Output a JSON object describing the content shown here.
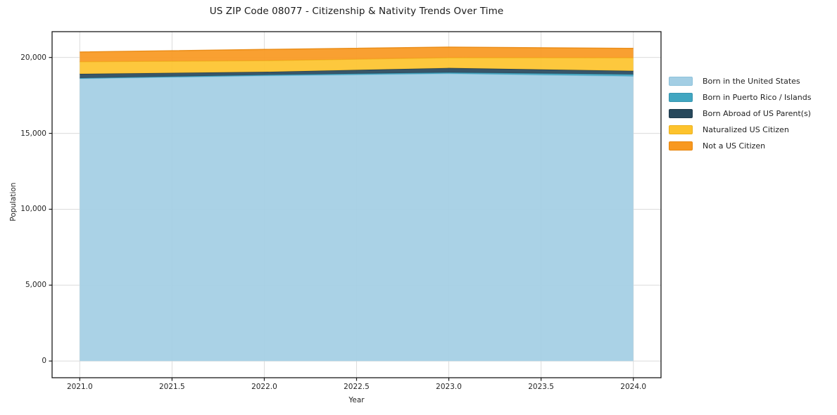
{
  "title": "US ZIP Code 08077 - Citizenship & Nativity Trends Over Time",
  "chart_data": {
    "type": "area",
    "stacked": true,
    "title": "US ZIP Code 08077 - Citizenship & Nativity Trends Over Time",
    "xlabel": "Year",
    "ylabel": "Population",
    "x": [
      2021,
      2022,
      2023,
      2024
    ],
    "series": [
      {
        "name": "Born in the United States",
        "color": "#a3cee4",
        "edge": "#8ec2db",
        "values": [
          18600,
          18790,
          18930,
          18760
        ]
      },
      {
        "name": "Born in Puerto Rico / Islands",
        "color": "#41a6c1",
        "edge": "#3795b0",
        "values": [
          40,
          60,
          75,
          125
        ]
      },
      {
        "name": "Born Abroad of US Parent(s)",
        "color": "#27485c",
        "edge": "#1f3b4d",
        "values": [
          280,
          200,
          300,
          230
        ]
      },
      {
        "name": "Naturalized US Citizen",
        "color": "#fdc32d",
        "edge": "#ecb11b",
        "values": [
          800,
          740,
          680,
          865
        ]
      },
      {
        "name": "Not a US Citizen",
        "color": "#f8981f",
        "edge": "#e8870e",
        "values": [
          640,
          740,
          700,
          620
        ]
      }
    ],
    "xlim": [
      2020.85,
      2024.15
    ],
    "ylim": [
      -1100,
      21700
    ],
    "xticks": {
      "values": [
        2021.0,
        2021.5,
        2022.0,
        2022.5,
        2023.0,
        2023.5,
        2024.0
      ],
      "labels": [
        "2021.0",
        "2021.5",
        "2022.0",
        "2022.5",
        "2023.0",
        "2023.5",
        "2024.0"
      ]
    },
    "yticks": {
      "values": [
        0,
        5000,
        10000,
        15000,
        20000
      ],
      "labels": [
        "0",
        "5,000",
        "10,000",
        "15,000",
        "20,000"
      ]
    },
    "grid": true,
    "legend_position": "right",
    "colors": {
      "grid": "#dcdcdc",
      "spine": "#1a1a1a",
      "text": "#262626",
      "background": "#ffffff"
    }
  }
}
